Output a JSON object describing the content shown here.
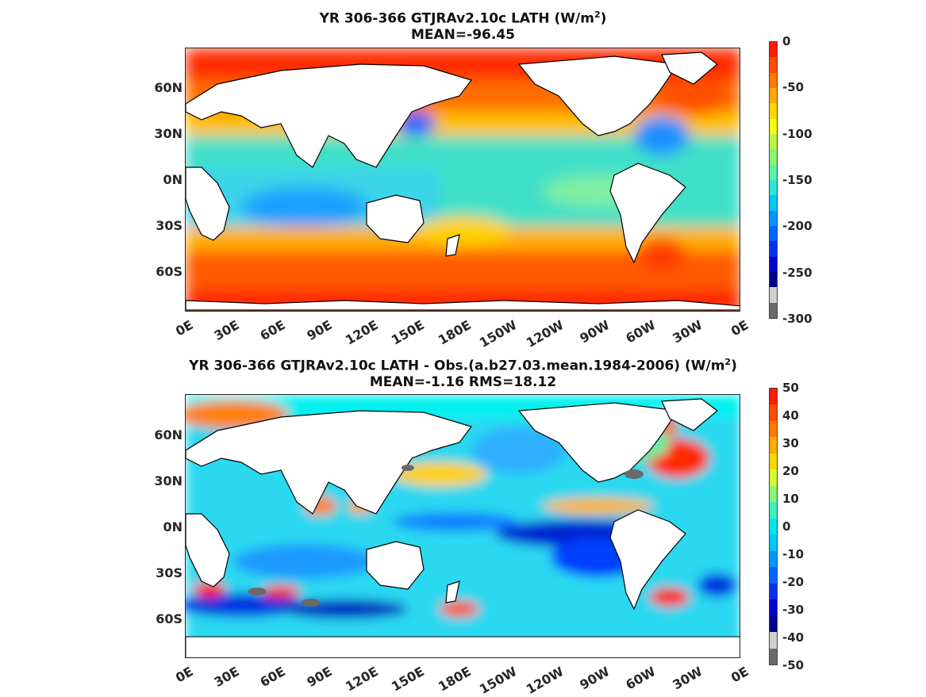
{
  "panel1": {
    "title_prefix": "YR 306-366 GTJRAv2.10c  LATH (W/m",
    "title_sup": "2",
    "title_suffix": ")",
    "mean": "MEAN=-96.45",
    "colorbar_labels": [
      "0",
      "-50",
      "-100",
      "-150",
      "-200",
      "-250",
      "-300"
    ],
    "colorbar_colors": [
      "#ff1a00",
      "#ff4a00",
      "#ff7800",
      "#ffab00",
      "#ffd700",
      "#f3ff0d",
      "#bdf23f",
      "#8bf373",
      "#5ef0a6",
      "#2ee6d4",
      "#00c8ff",
      "#0096ff",
      "#0064ff",
      "#0030f0",
      "#0000cc",
      "#00008c",
      "#d0d0d0",
      "#6a6a6a"
    ]
  },
  "panel2": {
    "title_prefix": "YR 306-366 GTJRAv2.10c LATH - Obs.(a.b27.03.mean.1984-2006) (W/m",
    "title_sup": "2",
    "title_suffix": ")",
    "mean": "MEAN=-1.16 RMS=18.12",
    "colorbar_labels": [
      "50",
      "40",
      "30",
      "20",
      "10",
      "0",
      "-10",
      "-20",
      "-30",
      "-40",
      "-50"
    ],
    "colorbar_colors": [
      "#ff1a00",
      "#ff4a00",
      "#ff7800",
      "#ffab00",
      "#ffd700",
      "#d2ff2b",
      "#8bf373",
      "#3ef0b8",
      "#00e6f0",
      "#00c8ff",
      "#0096ff",
      "#0064ff",
      "#0030f0",
      "#0000cc",
      "#00008c",
      "#d0d0d0",
      "#6a6a6a"
    ]
  },
  "lat_labels": [
    "60N",
    "30N",
    "0N",
    "30S",
    "60S"
  ],
  "lon_labels": [
    "0E",
    "30E",
    "60E",
    "90E",
    "120E",
    "150E",
    "180E",
    "150W",
    "120W",
    "90W",
    "60W",
    "30W",
    "0E"
  ],
  "colors": {
    "land": "#ffffff",
    "coast": "#000000"
  }
}
